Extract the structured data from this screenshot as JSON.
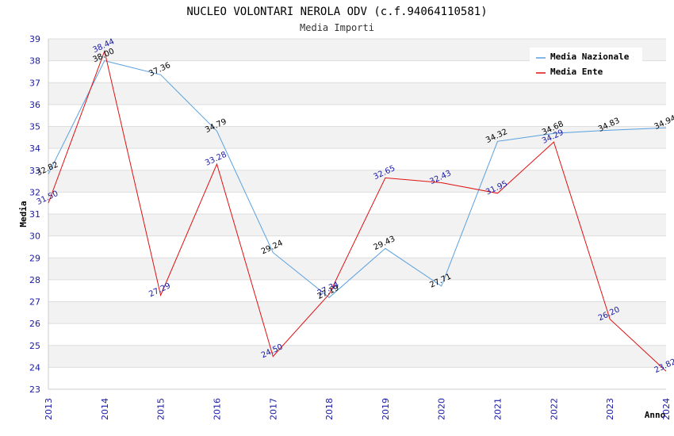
{
  "chart_data": {
    "type": "line",
    "title": "NUCLEO VOLONTARI NEROLA ODV (c.f.94064110581)",
    "subtitle": "Media Importi",
    "xlabel": "Anno",
    "ylabel": "Media",
    "ylim": [
      23,
      39
    ],
    "yticks": [
      "23",
      "24",
      "25",
      "26",
      "27",
      "28",
      "29",
      "30",
      "31",
      "32",
      "33",
      "34",
      "35",
      "36",
      "37",
      "38",
      "39"
    ],
    "categories": [
      "2013",
      "2014",
      "2015",
      "2016",
      "2017",
      "2018",
      "2019",
      "2020",
      "2021",
      "2022",
      "2023",
      "2024"
    ],
    "legend_position": "top-right",
    "series": [
      {
        "name": "Media Nazionale",
        "color": "#5aa0e0",
        "label_color": "#000000",
        "values": [
          32.82,
          38.0,
          37.36,
          34.79,
          29.24,
          27.19,
          29.43,
          27.71,
          34.32,
          34.68,
          34.83,
          34.94
        ],
        "labels": [
          "32.82",
          "38.00",
          "37.36",
          "34.79",
          "29.24",
          "27.19",
          "29.43",
          "27.71",
          "34.32",
          "34.68",
          "34.83",
          "34.94"
        ]
      },
      {
        "name": "Media Ente",
        "color": "#e01010",
        "label_color": "#1a1aa6",
        "values": [
          31.5,
          38.44,
          27.29,
          33.28,
          24.5,
          27.34,
          32.65,
          32.43,
          31.95,
          34.29,
          26.2,
          23.82
        ],
        "labels": [
          "31.50",
          "38.44",
          "27.29",
          "33.28",
          "24.50",
          "27.34",
          "32.65",
          "32.43",
          "31.95",
          "34.29",
          "26.20",
          "23.82"
        ]
      }
    ]
  }
}
